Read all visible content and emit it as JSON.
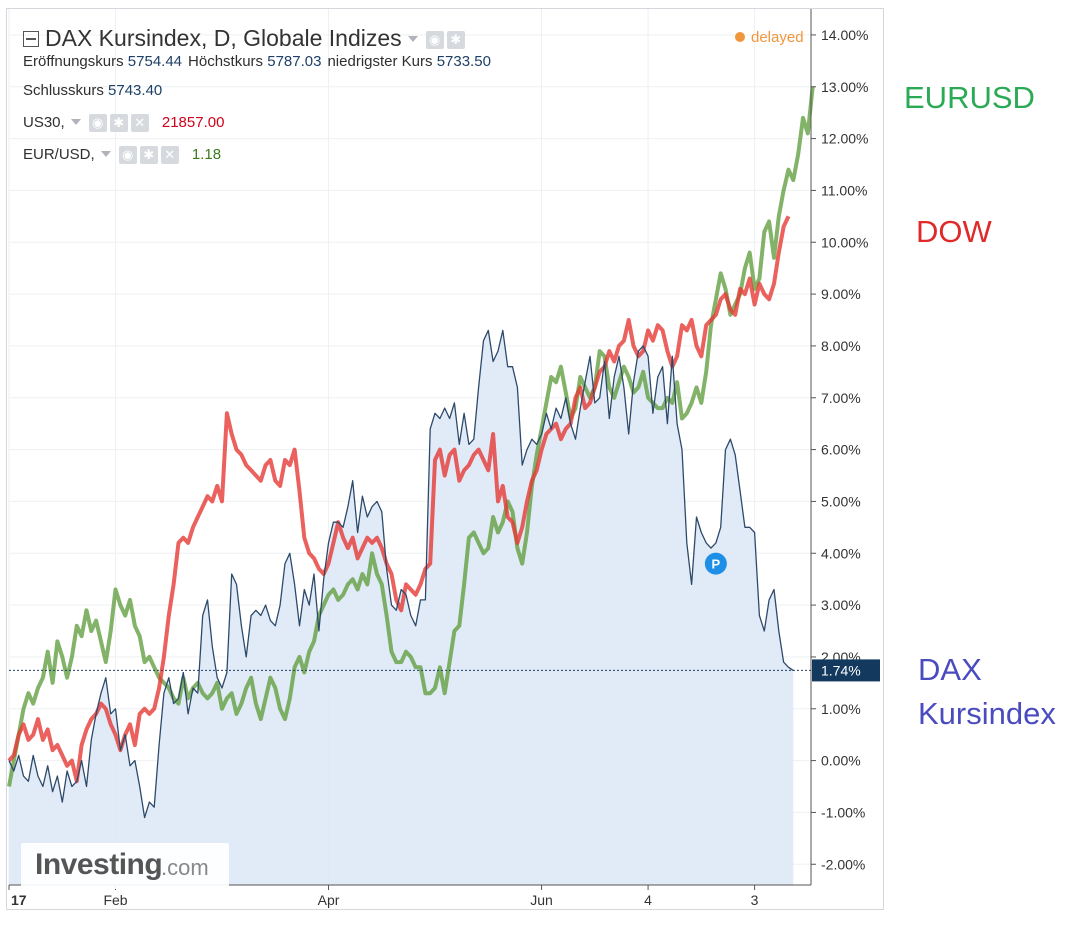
{
  "header": {
    "title": "DAX Kursindex, D, Globale Indizes",
    "delayed_label": "delayed",
    "ohlc": [
      {
        "label": "Eröffnungskurs",
        "value": "5754.44"
      },
      {
        "label": "Höchstkurs",
        "value": "5787.03"
      },
      {
        "label": "niedrigster Kurs",
        "value": "5733.50"
      }
    ],
    "close": {
      "label": "Schlusskurs",
      "value": "5743.40"
    },
    "compare": [
      {
        "symbol": "US30,",
        "value": "21857.00",
        "color": "#d0021b"
      },
      {
        "symbol": "EUR/USD,",
        "value": "1.18",
        "color": "#3c7a1e"
      }
    ]
  },
  "annotations": {
    "eurusd": {
      "text": "EURUSD",
      "color": "#2aaa55"
    },
    "dow": {
      "text": "DOW",
      "color": "#e02a2a"
    },
    "dax_line1": "DAX",
    "dax_line2": "Kursindex",
    "dax_color": "#4b4bc0"
  },
  "logo": {
    "main": "Investing",
    "suffix": ".com"
  },
  "chart_data": {
    "type": "line",
    "y_unit": "%",
    "ylim": [
      -2.4,
      14.5
    ],
    "ytick_labels": [
      "14.00%",
      "13.00%",
      "12.00%",
      "11.00%",
      "10.00%",
      "9.00%",
      "8.00%",
      "7.00%",
      "6.00%",
      "5.00%",
      "4.00%",
      "3.00%",
      "2.00%",
      "1.00%",
      "0.00%",
      "-1.00%",
      "-2.00%"
    ],
    "ytick_values": [
      14,
      13,
      12,
      11,
      10,
      9,
      8,
      7,
      6,
      5,
      4,
      3,
      2,
      1,
      0,
      -1,
      -2
    ],
    "xtick_labels": [
      "17",
      "Feb",
      "Apr",
      "Jun",
      "4",
      "3"
    ],
    "xtick_index": [
      0,
      22,
      66,
      110,
      132,
      154
    ],
    "grid": true,
    "last_value_label": "1.74%",
    "last_value": 1.74,
    "marker_label": "P",
    "marker_at": {
      "index": 146,
      "value": 3.8
    },
    "series": [
      {
        "name": "DAX Kursindex",
        "color": "#2d4a6b",
        "fill": "#dce8f7",
        "values": [
          0.0,
          -0.2,
          0.1,
          -0.3,
          -0.4,
          0.1,
          -0.3,
          -0.5,
          -0.1,
          -0.6,
          -0.3,
          -0.8,
          -0.2,
          -0.5,
          -0.4,
          0.0,
          -0.5,
          0.4,
          0.9,
          1.3,
          1.6,
          0.9,
          1.0,
          0.2,
          0.5,
          -0.1,
          0.0,
          -0.5,
          -1.1,
          -0.8,
          -0.9,
          0.3,
          1.3,
          1.6,
          1.1,
          1.2,
          1.7,
          0.9,
          1.4,
          1.3,
          2.8,
          3.1,
          2.2,
          1.6,
          1.4,
          1.7,
          3.6,
          3.4,
          2.6,
          2.0,
          2.8,
          2.9,
          2.8,
          3.0,
          2.7,
          2.6,
          3.0,
          3.8,
          4.0,
          3.4,
          2.6,
          3.3,
          3.0,
          3.6,
          2.5,
          3.5,
          4.2,
          4.6,
          4.6,
          4.5,
          4.9,
          5.4,
          4.4,
          5.1,
          4.7,
          4.9,
          5.0,
          4.8,
          3.7,
          3.0,
          2.9,
          3.3,
          3.2,
          2.8,
          2.6,
          3.1,
          3.1,
          6.4,
          6.7,
          6.6,
          6.8,
          6.6,
          6.9,
          6.1,
          6.7,
          6.1,
          6.2,
          7.2,
          8.1,
          8.3,
          7.7,
          7.9,
          8.3,
          7.6,
          7.6,
          7.2,
          5.7,
          6.0,
          6.2,
          6.1,
          6.3,
          6.7,
          6.4,
          6.8,
          6.6,
          7.0,
          6.5,
          6.2,
          6.8,
          7.3,
          7.8,
          6.9,
          7.0,
          7.7,
          6.6,
          7.4,
          7.8,
          7.2,
          6.3,
          7.3,
          7.9,
          8.0,
          7.8,
          6.7,
          7.4,
          7.6,
          6.5,
          7.8,
          6.5,
          6.0,
          4.2,
          3.4,
          4.7,
          4.4,
          4.2,
          4.1,
          4.2,
          4.5,
          6.0,
          6.2,
          5.9,
          5.2,
          4.5,
          4.5,
          4.4,
          2.8,
          2.5,
          3.1,
          3.3,
          2.5,
          1.9,
          1.8,
          1.74
        ]
      },
      {
        "name": "US30",
        "color": "#e53935",
        "values": [
          0.0,
          0.1,
          0.5,
          0.7,
          0.4,
          0.5,
          0.8,
          0.4,
          0.6,
          0.2,
          0.3,
          0.1,
          -0.1,
          0.0,
          -0.4,
          0.3,
          0.6,
          0.8,
          0.9,
          1.1,
          1.0,
          0.7,
          0.5,
          0.2,
          0.5,
          0.7,
          0.3,
          0.9,
          1.0,
          0.9,
          1.0,
          1.4,
          2.0,
          2.8,
          3.4,
          4.2,
          4.3,
          4.2,
          4.5,
          4.7,
          4.9,
          5.1,
          5.0,
          5.3,
          5.0,
          6.7,
          6.3,
          6.0,
          5.9,
          5.7,
          5.6,
          5.5,
          5.4,
          5.7,
          5.8,
          5.4,
          5.3,
          5.8,
          5.7,
          6.0,
          5.2,
          4.3,
          4.0,
          3.9,
          3.7,
          3.6,
          3.8,
          4.2,
          4.6,
          4.3,
          4.1,
          4.3,
          3.9,
          4.1,
          4.3,
          4.2,
          4.3,
          4.1,
          3.8,
          3.6,
          3.1,
          2.9,
          3.4,
          3.3,
          3.2,
          3.4,
          3.7,
          3.8,
          5.8,
          6.0,
          5.5,
          5.9,
          6.0,
          5.4,
          5.6,
          5.7,
          5.9,
          6.0,
          5.8,
          5.6,
          6.3,
          5.0,
          5.3,
          4.7,
          4.6,
          4.2,
          4.5,
          5.0,
          5.4,
          5.6,
          6.0,
          6.3,
          6.4,
          6.5,
          6.2,
          6.4,
          6.5,
          7.0,
          7.2,
          6.8,
          6.9,
          7.2,
          7.5,
          7.6,
          7.9,
          7.7,
          8.0,
          8.1,
          8.5,
          8.0,
          7.8,
          7.9,
          8.3,
          8.1,
          8.4,
          8.3,
          7.9,
          7.6,
          7.8,
          8.4,
          8.3,
          8.5,
          8.0,
          7.8,
          8.4,
          8.5,
          8.6,
          8.9,
          9.0,
          8.7,
          8.6,
          9.1,
          9.0,
          9.3,
          8.8,
          9.2,
          9.0,
          8.9,
          9.2,
          9.8,
          10.3,
          10.5
        ]
      },
      {
        "name": "EUR/USD",
        "color": "#5a9a35",
        "values": [
          -0.5,
          0.0,
          0.5,
          1.0,
          1.3,
          1.1,
          1.4,
          1.6,
          2.1,
          1.5,
          2.3,
          2.0,
          1.6,
          2.0,
          2.6,
          2.4,
          2.9,
          2.5,
          2.7,
          2.3,
          1.9,
          2.5,
          3.3,
          3.0,
          2.8,
          3.1,
          2.6,
          2.4,
          1.9,
          2.0,
          1.8,
          1.6,
          1.5,
          1.4,
          1.2,
          1.1,
          1.6,
          1.2,
          1.4,
          1.5,
          1.3,
          1.2,
          1.3,
          1.5,
          1.0,
          1.2,
          1.3,
          0.9,
          1.1,
          1.4,
          1.6,
          1.1,
          0.8,
          1.2,
          1.6,
          1.4,
          1.0,
          0.8,
          1.2,
          1.8,
          2.0,
          1.7,
          2.1,
          2.3,
          2.8,
          3.0,
          3.2,
          3.3,
          3.1,
          3.2,
          3.4,
          3.5,
          3.3,
          3.6,
          3.4,
          4.0,
          3.6,
          3.4,
          2.8,
          2.1,
          1.9,
          1.9,
          2.1,
          2.0,
          1.8,
          1.8,
          1.3,
          1.3,
          1.4,
          1.8,
          1.3,
          1.9,
          2.5,
          2.6,
          3.4,
          4.3,
          4.4,
          4.2,
          4.0,
          4.1,
          4.7,
          4.4,
          4.6,
          5.0,
          4.8,
          4.1,
          3.8,
          4.4,
          5.3,
          5.9,
          6.4,
          6.9,
          7.4,
          7.3,
          7.6,
          7.1,
          6.6,
          6.8,
          7.4,
          7.2,
          7.0,
          7.2,
          7.9,
          7.8,
          7.2,
          7.0,
          7.3,
          7.6,
          7.4,
          7.1,
          7.2,
          7.5,
          7.0,
          6.9,
          6.8,
          6.8,
          7.0,
          6.9,
          7.3,
          6.6,
          6.7,
          6.9,
          7.2,
          6.9,
          7.5,
          8.4,
          8.9,
          9.4,
          9.1,
          8.6,
          8.8,
          9.0,
          9.5,
          9.8,
          9.1,
          9.3,
          10.2,
          10.4,
          9.7,
          10.5,
          11.0,
          11.4,
          11.2,
          11.7,
          12.4,
          12.1,
          13.0
        ]
      }
    ]
  }
}
